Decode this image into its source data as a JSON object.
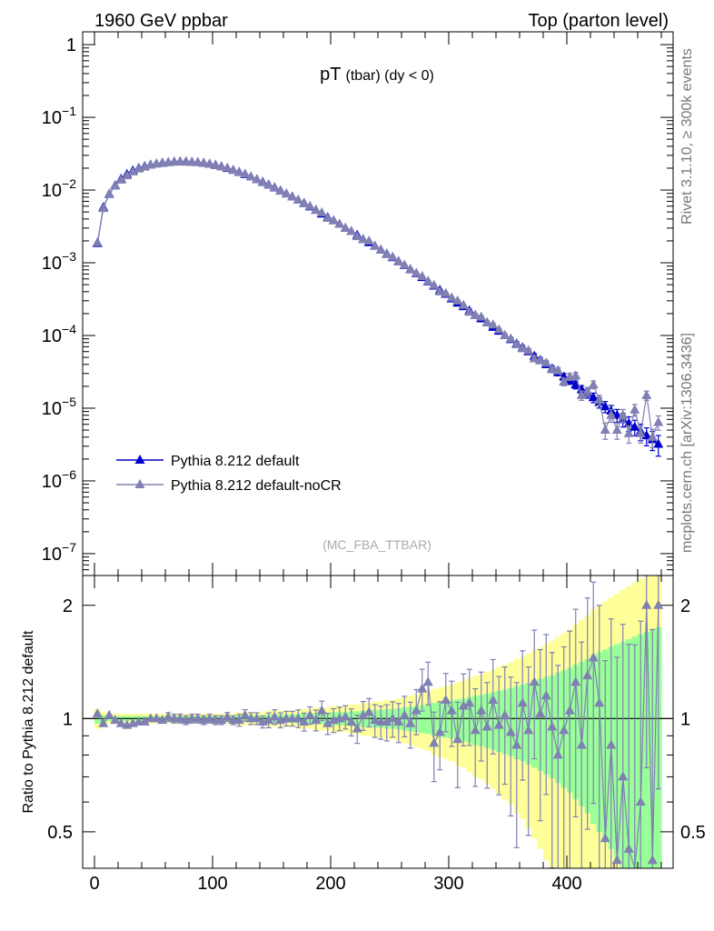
{
  "header": {
    "left": "1960 GeV ppbar",
    "right": "Top (parton level)"
  },
  "side": {
    "rivet": "Rivet 3.1.10, ≥ 300k events",
    "mcplots": "mcplots.cern.ch [arXiv:1306.3436]"
  },
  "colors": {
    "series1": "#0000cc",
    "series2": "#8080b3",
    "band_yellow": "#ffff99",
    "band_green": "#99ff99"
  },
  "chart_data": [
    {
      "type": "line",
      "title_main": "pT",
      "title_sub": "(tbar) (dy < 0)",
      "watermark": "(MC_FBA_TTBAR)",
      "yscale": "log",
      "xlim": [
        -10,
        490
      ],
      "ylim": [
        5e-08,
        1.5
      ],
      "yticks": [
        {
          "v": 1,
          "label": "1"
        },
        {
          "v": 0.1,
          "label": "10",
          "exp": "−1"
        },
        {
          "v": 0.01,
          "label": "10",
          "exp": "−2"
        },
        {
          "v": 0.001,
          "label": "10",
          "exp": "−3"
        },
        {
          "v": 0.0001,
          "label": "10",
          "exp": "−4"
        },
        {
          "v": 1e-05,
          "label": "10",
          "exp": "−5"
        },
        {
          "v": 1e-06,
          "label": "10",
          "exp": "−6"
        },
        {
          "v": 1e-07,
          "label": "10",
          "exp": "−7"
        }
      ],
      "legend": [
        "Pythia 8.212 default",
        "Pythia 8.212 default-noCR"
      ],
      "x": [
        2.5,
        7.5,
        12.5,
        17.5,
        22.5,
        27.5,
        32.5,
        37.5,
        42.5,
        47.5,
        52.5,
        57.5,
        62.5,
        67.5,
        72.5,
        77.5,
        82.5,
        87.5,
        92.5,
        97.5,
        102.5,
        107.5,
        112.5,
        117.5,
        122.5,
        127.5,
        132.5,
        137.5,
        142.5,
        147.5,
        152.5,
        157.5,
        162.5,
        167.5,
        172.5,
        177.5,
        182.5,
        187.5,
        192.5,
        197.5,
        202.5,
        207.5,
        212.5,
        217.5,
        222.5,
        227.5,
        232.5,
        237.5,
        242.5,
        247.5,
        252.5,
        257.5,
        262.5,
        267.5,
        272.5,
        277.5,
        282.5,
        287.5,
        292.5,
        297.5,
        302.5,
        307.5,
        312.5,
        317.5,
        322.5,
        327.5,
        332.5,
        337.5,
        342.5,
        347.5,
        352.5,
        357.5,
        362.5,
        367.5,
        372.5,
        377.5,
        382.5,
        387.5,
        392.5,
        397.5,
        402.5,
        407.5,
        412.5,
        417.5,
        422.5,
        427.5,
        432.5,
        437.5,
        442.5,
        447.5,
        452.5,
        457.5,
        462.5,
        467.5,
        472.5,
        477.5
      ],
      "series": [
        {
          "name": "Pythia 8.212 default",
          "values": [
            0.00185,
            0.0058,
            0.0088,
            0.0115,
            0.0142,
            0.0165,
            0.0185,
            0.02,
            0.0212,
            0.0222,
            0.023,
            0.0236,
            0.024,
            0.0244,
            0.0246,
            0.0245,
            0.0243,
            0.024,
            0.0235,
            0.0228,
            0.022,
            0.021,
            0.0199,
            0.0188,
            0.0176,
            0.0164,
            0.0152,
            0.014,
            0.0129,
            0.0118,
            0.0108,
            0.0098,
            0.0089,
            0.0081,
            0.0073,
            0.0066,
            0.0059,
            0.0053,
            0.0047,
            0.0042,
            0.0038,
            0.0034,
            0.003,
            0.0027,
            0.0024,
            0.0021,
            0.0019,
            0.0017,
            0.0015,
            0.00132,
            0.00118,
            0.00104,
            0.00092,
            0.00081,
            0.00071,
            0.00063,
            0.00055,
            0.00048,
            0.00042,
            0.00037,
            0.00032,
            0.00028,
            0.00025,
            0.00022,
            0.00019,
            0.00017,
            0.00015,
            0.00013,
            0.000115,
            0.0001,
            8.8e-05,
            7.7e-05,
            6.8e-05,
            6e-05,
            5.2e-05,
            4.6e-05,
            4e-05,
            3.5e-05,
            3.1e-05,
            2.7e-05,
            2.4e-05,
            2.1e-05,
            1.8e-05,
            1.6e-05,
            1.4e-05,
            1.2e-05,
            1.05e-05,
            9.2e-06,
            8e-06,
            7e-06,
            6.2e-06,
            5.5e-06,
            4.8e-06,
            4.2e-06,
            3.7e-06,
            3.2e-06
          ]
        },
        {
          "name": "Pythia 8.212 default-noCR",
          "values": [
            0.0019,
            0.0056,
            0.0089,
            0.0114,
            0.0138,
            0.0158,
            0.0179,
            0.0196,
            0.0208,
            0.0221,
            0.023,
            0.0233,
            0.0242,
            0.0243,
            0.0245,
            0.0243,
            0.0242,
            0.024,
            0.0233,
            0.0228,
            0.0218,
            0.0209,
            0.0202,
            0.0187,
            0.0175,
            0.0167,
            0.0152,
            0.014,
            0.0127,
            0.0117,
            0.0109,
            0.0097,
            0.0089,
            0.0081,
            0.0073,
            0.0065,
            0.006,
            0.0053,
            0.0049,
            0.0041,
            0.0038,
            0.0034,
            0.003,
            0.0027,
            0.0023,
            0.0021,
            0.002,
            0.0017,
            0.0015,
            0.0013,
            0.0012,
            0.00103,
            0.00093,
            0.0008,
            0.00072,
            0.00065,
            0.00056,
            0.00049,
            0.0004,
            0.00038,
            0.00033,
            0.0003,
            0.00026,
            0.00021,
            0.00019,
            0.00018,
            0.00015,
            0.00014,
            0.00012,
            0.0001,
            9e-05,
            7.5e-05,
            6.6e-05,
            6.2e-05,
            4.8e-05,
            4.5e-05,
            4.2e-05,
            3.4e-05,
            3.3e-05,
            2.3e-05,
            2.7e-05,
            2.8e-05,
            1.5e-05,
            1.7e-05,
            2.1e-05,
            1.3e-05,
            5e-06,
            8e-06,
            5e-06,
            8e-06,
            4.5e-06,
            9.5e-06,
            4.5e-06,
            1.5e-05,
            4e-06,
            6.4e-06
          ]
        }
      ]
    },
    {
      "type": "line",
      "ylabel": "Ratio to Pythia 8.212 default",
      "yscale": "log",
      "xlim": [
        -10,
        490
      ],
      "ylim": [
        0.4,
        2.4
      ],
      "xticks": [
        0,
        100,
        200,
        300,
        400
      ],
      "yticks": [
        {
          "v": 0.5,
          "label": "0.5"
        },
        {
          "v": 1,
          "label": "1"
        },
        {
          "v": 2,
          "label": "2"
        }
      ],
      "x": [
        2.5,
        7.5,
        12.5,
        17.5,
        22.5,
        27.5,
        32.5,
        37.5,
        42.5,
        47.5,
        52.5,
        57.5,
        62.5,
        67.5,
        72.5,
        77.5,
        82.5,
        87.5,
        92.5,
        97.5,
        102.5,
        107.5,
        112.5,
        117.5,
        122.5,
        127.5,
        132.5,
        137.5,
        142.5,
        147.5,
        152.5,
        157.5,
        162.5,
        167.5,
        172.5,
        177.5,
        182.5,
        187.5,
        192.5,
        197.5,
        202.5,
        207.5,
        212.5,
        217.5,
        222.5,
        227.5,
        232.5,
        237.5,
        242.5,
        247.5,
        252.5,
        257.5,
        262.5,
        267.5,
        272.5,
        277.5,
        282.5,
        287.5,
        292.5,
        297.5,
        302.5,
        307.5,
        312.5,
        317.5,
        322.5,
        327.5,
        332.5,
        337.5,
        342.5,
        347.5,
        352.5,
        357.5,
        362.5,
        367.5,
        372.5,
        377.5,
        382.5,
        387.5,
        392.5,
        397.5,
        402.5,
        407.5,
        412.5,
        417.5,
        422.5,
        427.5,
        432.5,
        437.5,
        442.5,
        447.5,
        452.5,
        457.5,
        462.5,
        467.5,
        472.5,
        477.5
      ],
      "ratio": [
        1.03,
        0.97,
        1.02,
        0.99,
        0.97,
        0.96,
        0.97,
        0.98,
        0.98,
        1.0,
        1.0,
        0.99,
        1.01,
        1.0,
        1.0,
        0.99,
        1.0,
        1.0,
        0.99,
        1.0,
        0.99,
        0.99,
        1.01,
        0.99,
        0.99,
        1.02,
        1.0,
        1.0,
        0.98,
        0.99,
        1.01,
        0.99,
        1.0,
        1.0,
        1.0,
        0.98,
        1.02,
        0.99,
        1.05,
        0.97,
        0.99,
        1.0,
        1.01,
        0.98,
        0.94,
        1.02,
        1.04,
        0.99,
        0.98,
        0.98,
        1.0,
        0.98,
        1.02,
        0.97,
        1.05,
        1.2,
        1.25,
        0.86,
        0.92,
        1.12,
        1.05,
        0.88,
        1.08,
        1.1,
        0.93,
        1.05,
        0.95,
        1.12,
        0.96,
        1.02,
        0.92,
        0.85,
        1.1,
        0.93,
        1.25,
        1.03,
        1.15,
        0.95,
        0.8,
        0.93,
        1.05,
        1.25,
        0.85,
        1.3,
        1.45,
        1.1,
        0.48,
        0.85,
        0.42,
        0.7,
        0.45,
        0.4,
        0.6,
        2.0,
        0.42,
        2.0
      ],
      "band_rel_yellow": [
        0.06,
        0.04,
        0.03,
        0.03,
        0.03,
        0.03,
        0.03,
        0.03,
        0.03,
        0.03,
        0.03,
        0.03,
        0.03,
        0.03,
        0.03,
        0.03,
        0.03,
        0.03,
        0.03,
        0.03,
        0.03,
        0.03,
        0.03,
        0.03,
        0.04,
        0.04,
        0.04,
        0.04,
        0.04,
        0.05,
        0.05,
        0.05,
        0.05,
        0.05,
        0.06,
        0.06,
        0.06,
        0.07,
        0.07,
        0.07,
        0.08,
        0.08,
        0.08,
        0.09,
        0.09,
        0.1,
        0.1,
        0.11,
        0.11,
        0.12,
        0.12,
        0.13,
        0.14,
        0.15,
        0.16,
        0.17,
        0.18,
        0.2,
        0.21,
        0.22,
        0.23,
        0.25,
        0.26,
        0.28,
        0.3,
        0.31,
        0.33,
        0.35,
        0.37,
        0.39,
        0.41,
        0.44,
        0.46,
        0.49,
        0.52,
        0.55,
        0.58,
        0.61,
        0.65,
        0.69,
        0.73,
        0.78,
        0.83,
        0.88,
        0.95,
        1.0,
        1.05,
        1.1,
        1.15,
        1.2,
        1.25,
        1.3,
        1.35,
        1.4,
        1.45,
        1.5
      ],
      "band_rel_green": [
        0.03,
        0.02,
        0.015,
        0.015,
        0.015,
        0.015,
        0.015,
        0.015,
        0.015,
        0.015,
        0.015,
        0.015,
        0.015,
        0.015,
        0.015,
        0.015,
        0.015,
        0.015,
        0.015,
        0.015,
        0.015,
        0.015,
        0.015,
        0.015,
        0.02,
        0.02,
        0.02,
        0.02,
        0.02,
        0.025,
        0.025,
        0.025,
        0.025,
        0.025,
        0.03,
        0.03,
        0.03,
        0.035,
        0.035,
        0.035,
        0.04,
        0.04,
        0.04,
        0.045,
        0.045,
        0.05,
        0.05,
        0.055,
        0.055,
        0.06,
        0.06,
        0.065,
        0.07,
        0.075,
        0.08,
        0.085,
        0.09,
        0.1,
        0.105,
        0.11,
        0.115,
        0.125,
        0.13,
        0.14,
        0.15,
        0.155,
        0.165,
        0.175,
        0.185,
        0.195,
        0.205,
        0.22,
        0.23,
        0.245,
        0.26,
        0.275,
        0.29,
        0.305,
        0.325,
        0.345,
        0.365,
        0.39,
        0.415,
        0.44,
        0.475,
        0.5,
        0.525,
        0.55,
        0.575,
        0.6,
        0.625,
        0.65,
        0.675,
        0.7,
        0.725,
        0.75
      ]
    }
  ]
}
